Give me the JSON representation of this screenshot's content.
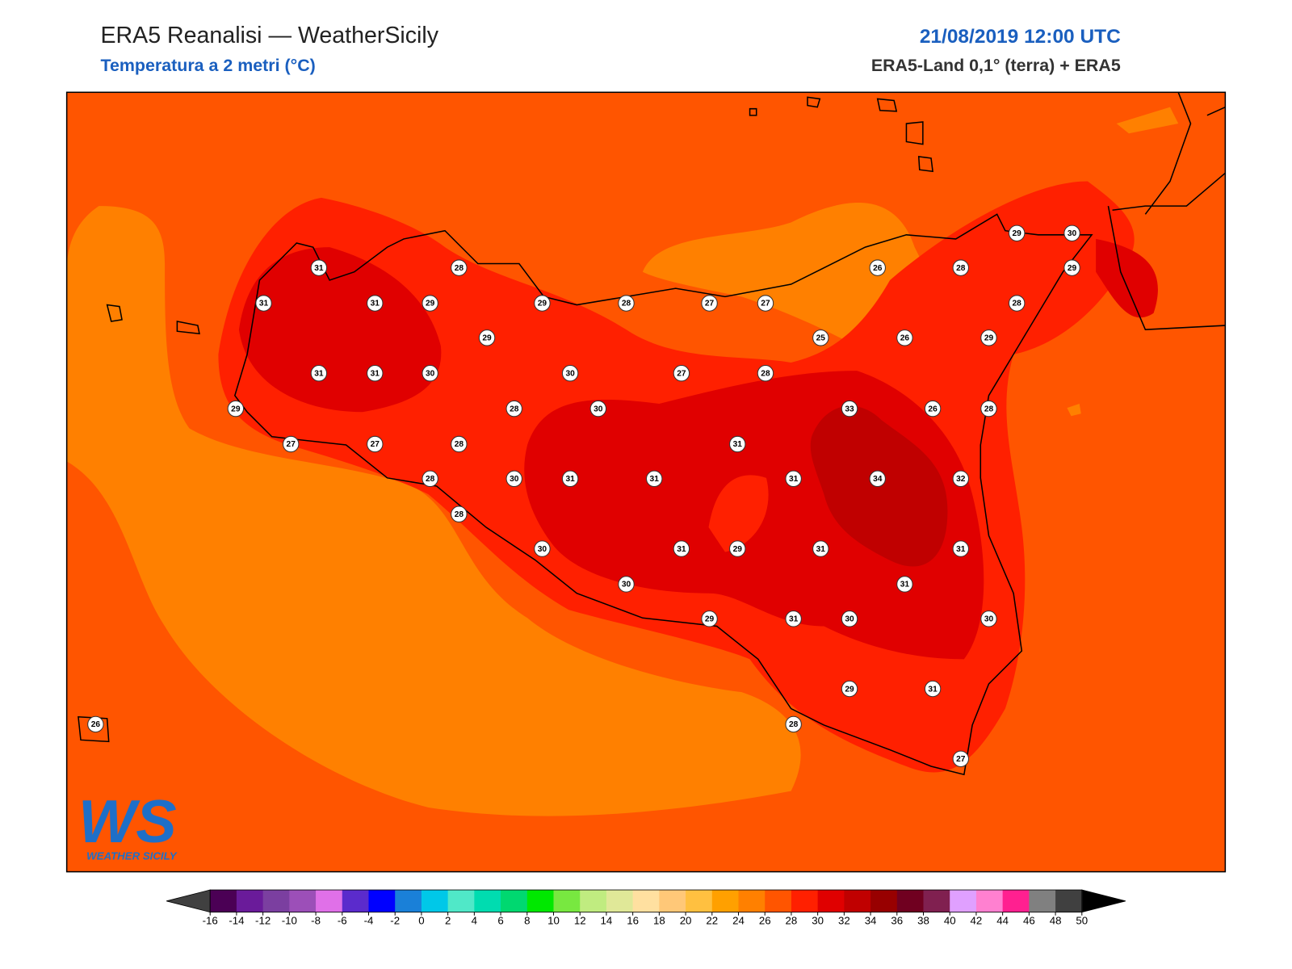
{
  "header": {
    "title": "ERA5 Reanalisi — WeatherSicily",
    "subtitle": "Temperatura a 2 metri (°C)",
    "datetime": "21/08/2019 12:00 UTC",
    "source": "ERA5-Land 0,1° (terra) + ERA5"
  },
  "logo": {
    "mark": "WS",
    "name": "WEATHER SICILY"
  },
  "stations": [
    31,
    28,
    31,
    31,
    29,
    29,
    28,
    27,
    27,
    26,
    28,
    29,
    30,
    29,
    28,
    29,
    25,
    26,
    29,
    31,
    31,
    30,
    30,
    27,
    28,
    29,
    28,
    30,
    33,
    26,
    28,
    27,
    27,
    28,
    31,
    28,
    30,
    31,
    31,
    31,
    34,
    32,
    28,
    30,
    31,
    29,
    31,
    31,
    30,
    31,
    29,
    31,
    30,
    30,
    29,
    31,
    28,
    27,
    26
  ],
  "colorbar": {
    "ticks": [
      -16,
      -14,
      -12,
      -10,
      -8,
      -6,
      -4,
      -2,
      0,
      2,
      4,
      6,
      8,
      10,
      12,
      14,
      16,
      18,
      20,
      22,
      24,
      26,
      28,
      30,
      32,
      34,
      36,
      38,
      40,
      42,
      44,
      46,
      48,
      50
    ],
    "colors": [
      "#4b0055",
      "#6a1b9a",
      "#7b3fa0",
      "#9c4fb8",
      "#e070e8",
      "#5b2bcc",
      "#0000ff",
      "#1a80d8",
      "#00c8e8",
      "#50e8c8",
      "#00dcb0",
      "#00d870",
      "#00e800",
      "#78e840",
      "#c0ec80",
      "#e0e898",
      "#ffe0a0",
      "#ffc878",
      "#ffc040",
      "#ffa000",
      "#ff8000",
      "#ff5500",
      "#ff2000",
      "#e00000",
      "#c00000",
      "#980000",
      "#700020",
      "#802050",
      "#e0a0ff",
      "#ff80d0",
      "#ff2090",
      "#808080",
      "#404040"
    ],
    "under_color": "#404040",
    "over_color": "#000000"
  }
}
